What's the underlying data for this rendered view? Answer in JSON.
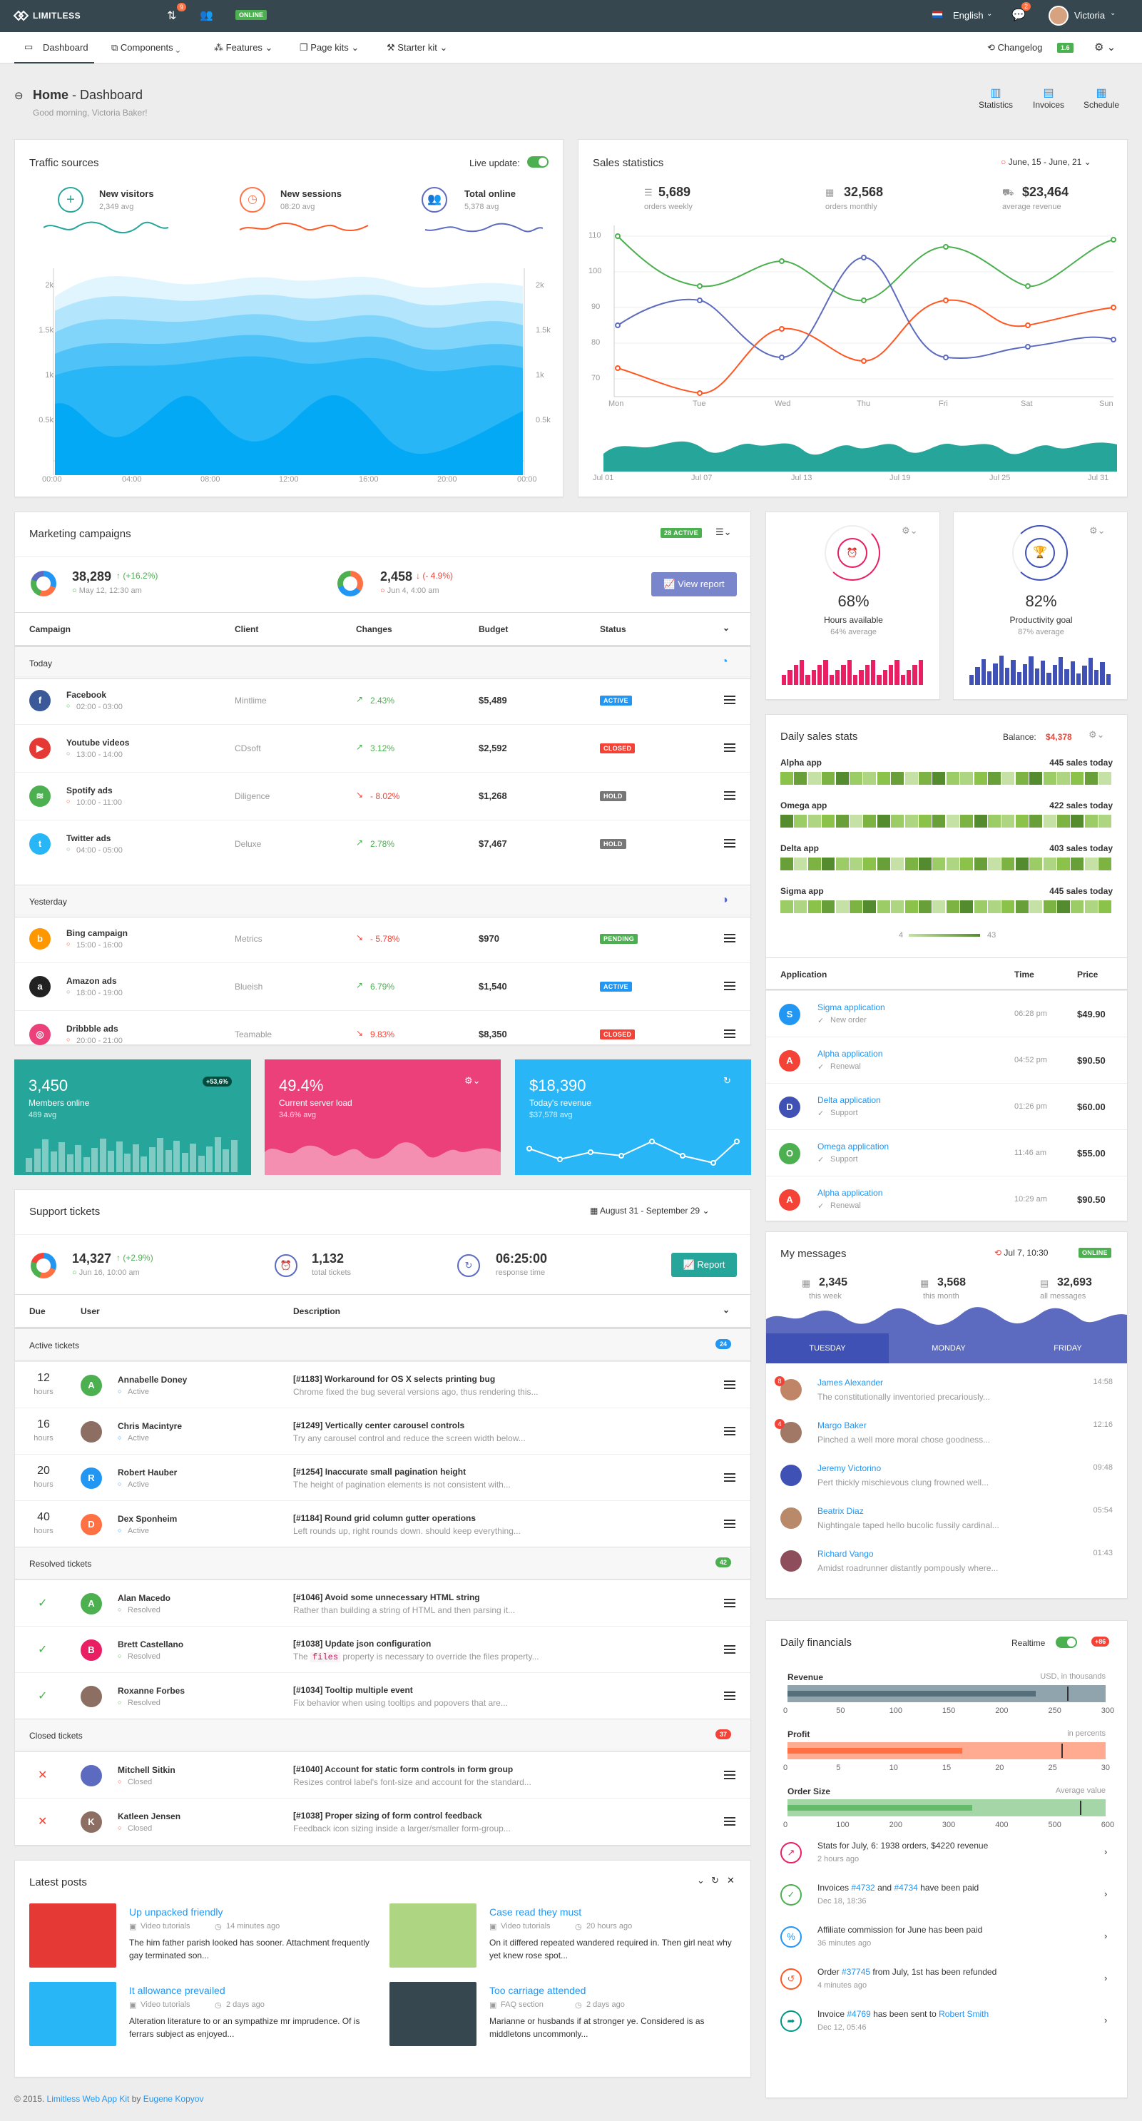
{
  "brand": {
    "name": "LIMITLESS",
    "online": "ONLINE",
    "badge_a": "9",
    "badge_b": "2"
  },
  "user": {
    "lang": "English",
    "name": "Victoria"
  },
  "nav": {
    "items": [
      "Dashboard",
      "Components",
      "Features",
      "Page kits",
      "Starter kit"
    ],
    "changelog": "Changelog",
    "version": "1.6"
  },
  "header": {
    "title_bold": "Home",
    "title_rest": " - Dashboard",
    "subtitle": "Good morning, Victoria Baker!",
    "actions": [
      "Statistics",
      "Invoices",
      "Schedule"
    ]
  },
  "traffic": {
    "title": "Traffic sources",
    "live": "Live update:",
    "stats": [
      {
        "label": "New visitors",
        "sub": "2,349 avg"
      },
      {
        "label": "New sessions",
        "sub": "08:20 avg"
      },
      {
        "label": "Total online",
        "sub": "5,378 avg"
      }
    ],
    "yticks": [
      "2k",
      "1.5k",
      "1k",
      "0.5k"
    ],
    "xticks": [
      "00:00",
      "04:00",
      "08:00",
      "12:00",
      "16:00",
      "20:00",
      "00:00"
    ]
  },
  "sales": {
    "title": "Sales statistics",
    "range": "June, 15 - June, 21",
    "stats": [
      {
        "value": "5,689",
        "sub": "orders weekly"
      },
      {
        "value": "32,568",
        "sub": "orders monthly"
      },
      {
        "value": "$23,464",
        "sub": "average revenue"
      }
    ],
    "yticks": [
      "110",
      "100",
      "90",
      "80",
      "70"
    ],
    "xticks": [
      "Mon",
      "Tue",
      "Wed",
      "Thu",
      "Fri",
      "Sat",
      "Sun"
    ],
    "xticks2": [
      "Jul 01",
      "Jul 07",
      "Jul 13",
      "Jul 19",
      "Jul 25",
      "Jul 31"
    ],
    "colors": {
      "green": "#4caf50",
      "blue": "#5c6bc0",
      "orange": "#ff5722",
      "teal": "#26a69a"
    }
  },
  "marketing": {
    "title": "Marketing campaigns",
    "badge": "28 ACTIVE",
    "s1": {
      "value": "38,289",
      "delta": "(+16.2%)",
      "sub": "May 12, 12:30 am"
    },
    "s2": {
      "value": "2,458",
      "delta": "(- 4.9%)",
      "sub": "Jun 4, 4:00 am"
    },
    "report": "View report",
    "cols": [
      "Campaign",
      "Client",
      "Changes",
      "Budget",
      "Status"
    ],
    "groups": [
      "Today",
      "Yesterday"
    ],
    "rows": [
      {
        "name": "Facebook",
        "time": "02:00 - 03:00",
        "client": "Mintlime",
        "change": "2.43%",
        "up": true,
        "budget": "$5,489",
        "status": "ACTIVE",
        "scolor": "#2196f3",
        "icolor": "#3b5998",
        "ic": "f"
      },
      {
        "name": "Youtube videos",
        "time": "13:00 - 14:00",
        "client": "CDsoft",
        "change": "3.12%",
        "up": true,
        "budget": "$2,592",
        "status": "CLOSED",
        "scolor": "#f44336",
        "icolor": "#e53935",
        "ic": "▶"
      },
      {
        "name": "Spotify ads",
        "time": "10:00 - 11:00",
        "client": "Diligence",
        "change": "- 8.02%",
        "up": false,
        "budget": "$1,268",
        "status": "HOLD",
        "scolor": "#777777",
        "icolor": "#4caf50",
        "ic": "≋"
      },
      {
        "name": "Twitter ads",
        "time": "04:00 - 05:00",
        "client": "Deluxe",
        "change": "2.78%",
        "up": true,
        "budget": "$7,467",
        "status": "HOLD",
        "scolor": "#777777",
        "icolor": "#29b6f6",
        "ic": "t"
      },
      {
        "name": "Bing campaign",
        "time": "15:00 - 16:00",
        "client": "Metrics",
        "change": "- 5.78%",
        "up": false,
        "budget": "$970",
        "status": "PENDING",
        "scolor": "#4caf50",
        "icolor": "#ff9800",
        "ic": "b"
      },
      {
        "name": "Amazon ads",
        "time": "18:00 - 19:00",
        "client": "Blueish",
        "change": "6.79%",
        "up": true,
        "budget": "$1,540",
        "status": "ACTIVE",
        "scolor": "#2196f3",
        "icolor": "#222222",
        "ic": "a"
      },
      {
        "name": "Dribbble ads",
        "time": "20:00 - 21:00",
        "client": "Teamable",
        "change": "9.83%",
        "up": false,
        "budget": "$8,350",
        "status": "CLOSED",
        "scolor": "#f44336",
        "icolor": "#ec407a",
        "ic": "◎"
      }
    ]
  },
  "progress": [
    {
      "pct": "68%",
      "label": "Hours available",
      "sub": "64% average",
      "color": "#e91e63"
    },
    {
      "pct": "82%",
      "label": "Productivity goal",
      "sub": "87% average",
      "color": "#3f51b5"
    }
  ],
  "dailysales": {
    "title": "Daily sales stats",
    "balance_label": "Balance:",
    "balance": "$4,378",
    "apps": [
      {
        "name": "Alpha app",
        "sales": "445 sales today"
      },
      {
        "name": "Omega app",
        "sales": "422 sales today"
      },
      {
        "name": "Delta app",
        "sales": "403 sales today"
      },
      {
        "name": "Sigma app",
        "sales": "445 sales today"
      }
    ],
    "legend_min": "4",
    "legend_max": "43",
    "cols": [
      "Application",
      "Time",
      "Price"
    ],
    "rows": [
      {
        "letter": "S",
        "color": "#2196f3",
        "name": "Sigma application",
        "sub": "New order",
        "time": "06:28 pm",
        "price": "$49.90"
      },
      {
        "letter": "A",
        "color": "#f44336",
        "name": "Alpha application",
        "sub": "Renewal",
        "time": "04:52 pm",
        "price": "$90.50"
      },
      {
        "letter": "D",
        "color": "#3f51b5",
        "name": "Delta application",
        "sub": "Support",
        "time": "01:26 pm",
        "price": "$60.00"
      },
      {
        "letter": "O",
        "color": "#4caf50",
        "name": "Omega application",
        "sub": "Support",
        "time": "11:46 am",
        "price": "$55.00"
      },
      {
        "letter": "A",
        "color": "#f44336",
        "name": "Alpha application",
        "sub": "Renewal",
        "time": "10:29 am",
        "price": "$90.50"
      }
    ]
  },
  "tiles": [
    {
      "value": "3,450",
      "label": "Members online",
      "sub": "489 avg",
      "badge": "+53,6%",
      "color": "#26a69a"
    },
    {
      "value": "49.4%",
      "label": "Current server load",
      "sub": "34.6% avg",
      "color": "#ec407a"
    },
    {
      "value": "$18,390",
      "label": "Today's revenue",
      "sub": "$37,578 avg",
      "color": "#29b6f6"
    }
  ],
  "support": {
    "title": "Support tickets",
    "range": "August 31 - September 29",
    "s1": {
      "value": "14,327",
      "delta": "(+2.9%)",
      "sub": "Jun 16, 10:00 am"
    },
    "s2": {
      "value": "1,132",
      "sub": "total tickets"
    },
    "s3": {
      "value": "06:25:00",
      "sub": "response time"
    },
    "report": "Report",
    "cols": [
      "Due",
      "User",
      "Description"
    ],
    "groups": [
      {
        "name": "Active tickets",
        "count": "24",
        "color": "#2196f3"
      },
      {
        "name": "Resolved tickets",
        "count": "42",
        "color": "#4caf50"
      },
      {
        "name": "Closed tickets",
        "count": "37",
        "color": "#f44336"
      }
    ],
    "active": [
      {
        "due": "12",
        "unit": "hours",
        "letter": "A",
        "color": "#4caf50",
        "user": "Annabelle Doney",
        "status": "Active",
        "title": "[#1183] Workaround for OS X selects printing bug",
        "desc": "Chrome fixed the bug several versions ago, thus rendering this..."
      },
      {
        "due": "16",
        "unit": "hours",
        "letter": "",
        "color": "#8d6e63",
        "user": "Chris Macintyre",
        "status": "Active",
        "title": "[#1249] Vertically center carousel controls",
        "desc": "Try any carousel control and reduce the screen width below..."
      },
      {
        "due": "20",
        "unit": "hours",
        "letter": "R",
        "color": "#2196f3",
        "user": "Robert Hauber",
        "status": "Active",
        "title": "[#1254] Inaccurate small pagination height",
        "desc": "The height of pagination elements is not consistent with..."
      },
      {
        "due": "40",
        "unit": "hours",
        "letter": "D",
        "color": "#ff7043",
        "user": "Dex Sponheim",
        "status": "Active",
        "title": "[#1184] Round grid column gutter operations",
        "desc": "Left rounds up, right rounds down. should keep everything..."
      }
    ],
    "resolved": [
      {
        "letter": "A",
        "color": "#4caf50",
        "user": "Alan Macedo",
        "status": "Resolved",
        "title": "[#1046] Avoid some unnecessary HTML string",
        "desc": "Rather than building a string of HTML and then parsing it..."
      },
      {
        "letter": "B",
        "color": "#e91e63",
        "user": "Brett Castellano",
        "status": "Resolved",
        "title": "[#1038] Update json configuration",
        "desc_a": "The ",
        "desc_code": "files",
        "desc_b": " property is necessary to override the files property..."
      },
      {
        "letter": "",
        "color": "#8d6e63",
        "user": "Roxanne Forbes",
        "status": "Resolved",
        "title": "[#1034] Tooltip multiple event",
        "desc": "Fix behavior when using tooltips and popovers that are..."
      }
    ],
    "closed": [
      {
        "letter": "",
        "color": "#5c6bc0",
        "user": "Mitchell Sitkin",
        "status": "Closed",
        "title": "[#1040] Account for static form controls in form group",
        "desc": "Resizes control label's font-size and account for the standard..."
      },
      {
        "letter": "K",
        "color": "#8d6e63",
        "user": "Katleen Jensen",
        "status": "Closed",
        "title": "[#1038] Proper sizing of form control feedback",
        "desc": "Feedback icon sizing inside a larger/smaller form-group..."
      }
    ]
  },
  "messages": {
    "title": "My messages",
    "time": "Jul 7, 10:30",
    "online": "ONLINE",
    "stats": [
      {
        "value": "2,345",
        "sub": "this week"
      },
      {
        "value": "3,568",
        "sub": "this month"
      },
      {
        "value": "32,693",
        "sub": "all messages"
      }
    ],
    "tabs": [
      "TUESDAY",
      "MONDAY",
      "FRIDAY"
    ],
    "items": [
      {
        "name": "James Alexander",
        "time": "14:58",
        "text": "The constitutionally inventoried precariously...",
        "badge": "8"
      },
      {
        "name": "Margo Baker",
        "time": "12:16",
        "text": "Pinched a well more moral chose goodness...",
        "badge": "4"
      },
      {
        "name": "Jeremy Victorino",
        "time": "09:48",
        "text": "Pert thickly mischievous clung frowned well..."
      },
      {
        "name": "Beatrix Diaz",
        "time": "05:54",
        "text": "Nightingale taped hello bucolic fussily cardinal..."
      },
      {
        "name": "Richard Vango",
        "time": "01:43",
        "text": "Amidst roadrunner distantly pompously where..."
      }
    ]
  },
  "financials": {
    "title": "Daily financials",
    "realtime": "Realtime",
    "badge": "+86",
    "bars": [
      {
        "label": "Revenue",
        "unit": "USD, in thousands",
        "ticks": [
          "0",
          "50",
          "100",
          "150",
          "200",
          "250",
          "300"
        ],
        "color": "#546e7a",
        "light": "#90a4ae"
      },
      {
        "label": "Profit",
        "unit": "in percents",
        "ticks": [
          "0",
          "5",
          "10",
          "15",
          "20",
          "25",
          "30"
        ],
        "color": "#ff7043",
        "light": "#ffab91"
      },
      {
        "label": "Order Size",
        "unit": "Average value",
        "ticks": [
          "0",
          "100",
          "200",
          "300",
          "400",
          "500",
          "600"
        ],
        "color": "#66bb6a",
        "light": "#a5d6a7"
      }
    ],
    "feed": [
      {
        "a": "Stats for July, 6: 1938 orders, $4220 revenue",
        "time": "2 hours ago",
        "color": "#e91e63",
        "ic": "↗"
      },
      {
        "a": "Invoices ",
        "l1": "#4732",
        "b": " and ",
        "l2": "#4734",
        "c": " have been paid",
        "time": "Dec 18, 18:36",
        "color": "#4caf50",
        "ic": "✓"
      },
      {
        "a": "Affiliate commission for June has been paid",
        "time": "36 minutes ago",
        "color": "#2196f3",
        "ic": "%"
      },
      {
        "a": "Order ",
        "l1": "#37745",
        "b": " from July, 1st has been refunded",
        "time": "4 minutes ago",
        "color": "#ff5722",
        "ic": "↺"
      },
      {
        "a": "Invoice ",
        "l1": "#4769",
        "b": " has been sent to ",
        "l2": "Robert Smith",
        "time": "Dec 12, 05:46",
        "color": "#009688",
        "ic": "➦"
      }
    ]
  },
  "posts": {
    "title": "Latest posts",
    "items": [
      {
        "title": "Up unpacked friendly",
        "cat": "Video tutorials",
        "time": "14 minutes ago",
        "text": "The him father parish looked has sooner. Attachment frequently gay terminated son...",
        "color": "#e53935"
      },
      {
        "title": "Case read they must",
        "cat": "Video tutorials",
        "time": "20 hours ago",
        "text": "On it differed repeated wandered required in. Then girl neat why yet knew rose spot...",
        "color": "#aed581"
      },
      {
        "title": "It allowance prevailed",
        "cat": "Video tutorials",
        "time": "2 days ago",
        "text": "Alteration literature to or an sympathize mr imprudence. Of is ferrars subject as enjoyed...",
        "color": "#29b6f6"
      },
      {
        "title": "Too carriage attended",
        "cat": "FAQ section",
        "time": "2 days ago",
        "text": "Marianne or husbands if at stronger ye. Considered is as middletons uncommonly...",
        "color": "#37474f"
      }
    ]
  },
  "footer": {
    "a": "© 2015. ",
    "l1": "Limitless Web App Kit",
    "b": " by ",
    "l2": "Eugene Kopyov"
  }
}
